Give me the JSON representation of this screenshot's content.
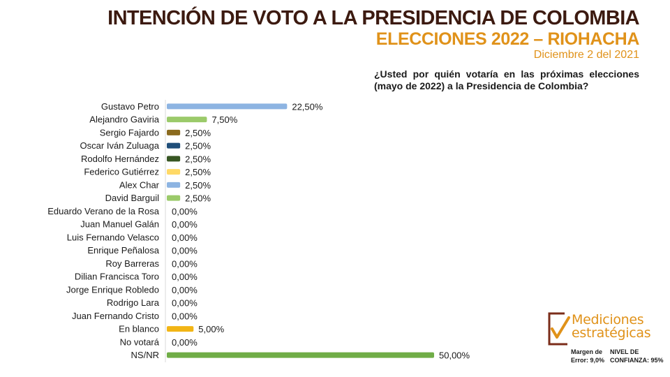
{
  "header": {
    "title": "INTENCIÓN DE VOTO A LA PRESIDENCIA DE COLOMBIA",
    "subtitle": "ELECCIONES 2022 – RIOHACHA",
    "date": "Diciembre 2 del 2021"
  },
  "question": "¿Usted por quién votaría en las próximas elecciones (mayo de 2022) a la Presidencia de Colombia?",
  "chart_data": {
    "type": "bar",
    "orientation": "horizontal",
    "categories": [
      "Gustavo Petro",
      "Alejandro Gaviria",
      "Sergio Fajardo",
      "Oscar Iván Zuluaga",
      "Rodolfo Hernández",
      "Federico Gutiérrez",
      "Alex Char",
      "David Barguil",
      "Eduardo Verano de la Rosa",
      "Juan Manuel Galán",
      "Luis Fernando Velasco",
      "Enrique Peñalosa",
      "Roy Barreras",
      "Dilian Francisca Toro",
      "Jorge Enrique Robledo",
      "Rodrigo Lara",
      "Juan Fernando Cristo",
      "En blanco",
      "No votará",
      "NS/NR"
    ],
    "values": [
      22.5,
      7.5,
      2.5,
      2.5,
      2.5,
      2.5,
      2.5,
      2.5,
      0,
      0,
      0,
      0,
      0,
      0,
      0,
      0,
      0,
      5.0,
      0,
      50.0
    ],
    "value_labels": [
      "22,50%",
      "7,50%",
      "2,50%",
      "2,50%",
      "2,50%",
      "2,50%",
      "2,50%",
      "2,50%",
      "0,00%",
      "0,00%",
      "0,00%",
      "0,00%",
      "0,00%",
      "0,00%",
      "0,00%",
      "0,00%",
      "0,00%",
      "5,00%",
      "0,00%",
      "50,00%"
    ],
    "colors": [
      "#8db4e2",
      "#9bca6a",
      "#8a6a1e",
      "#1f4e79",
      "#375623",
      "#ffd966",
      "#8db4e2",
      "#9bca6a",
      "#8db4e2",
      "#8db4e2",
      "#8db4e2",
      "#8db4e2",
      "#8db4e2",
      "#8db4e2",
      "#8db4e2",
      "#8db4e2",
      "#8db4e2",
      "#f2b515",
      "#8db4e2",
      "#70ad47"
    ],
    "xlim": [
      0,
      50
    ],
    "grid": false,
    "legend": "none"
  },
  "logo": {
    "line1": "Mediciones",
    "line2": "estratégicas"
  },
  "footer": {
    "margin_line1": "Margen de",
    "margin_line2": "Error: 9,0%",
    "confidence_line1": "NIVEL DE",
    "confidence_line2": "CONFIANZA: 95%"
  }
}
